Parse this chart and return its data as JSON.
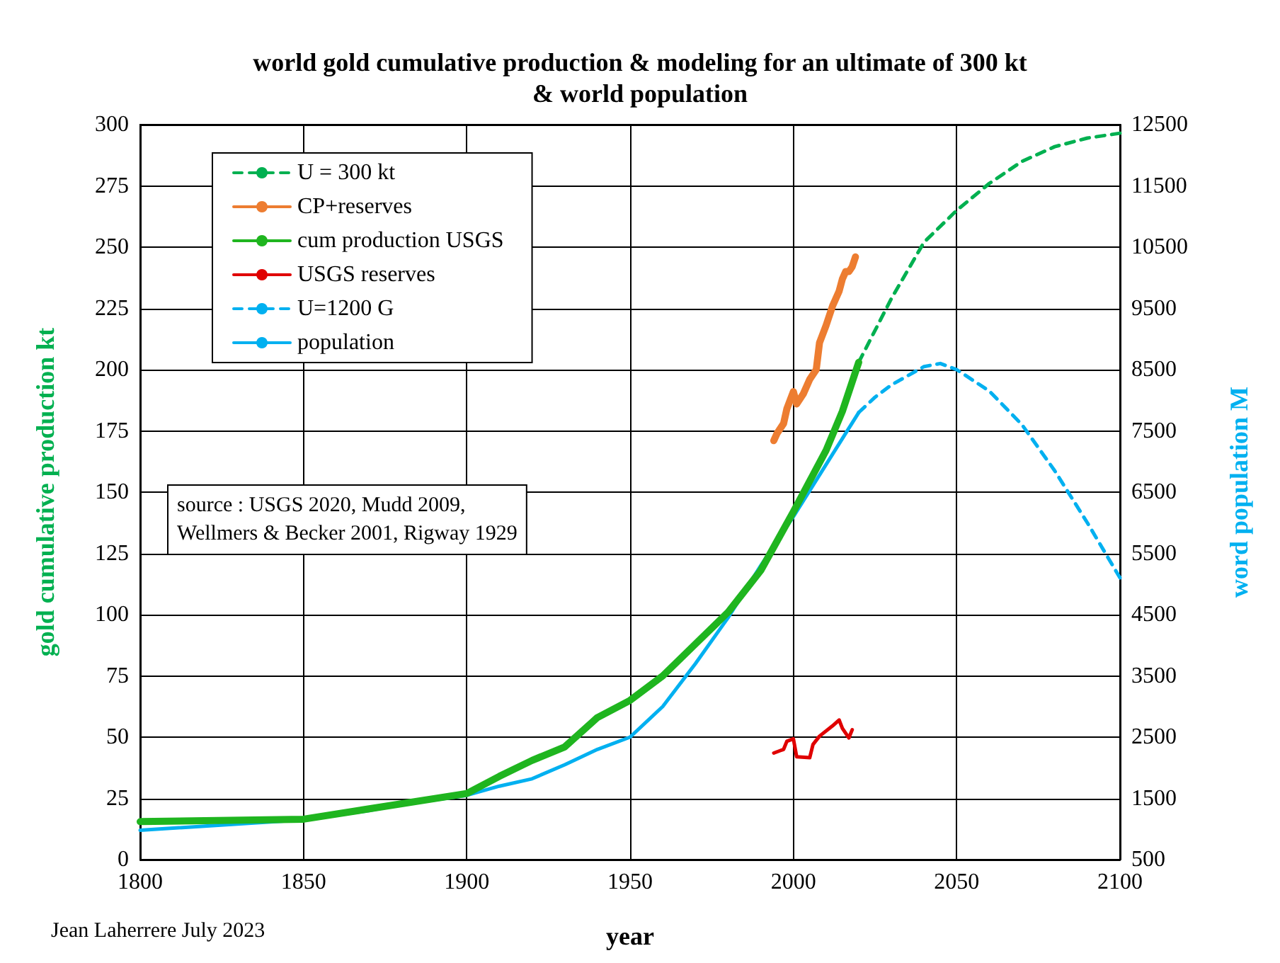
{
  "chart_data": {
    "type": "line",
    "title": "world gold cumulative production & modeling for an ultimate of 300 kt\n& world population",
    "xlabel": "year",
    "ylabel": "gold cumulative production kt",
    "y2label": "word population M",
    "xlim": [
      1800,
      2100
    ],
    "xticks": [
      1800,
      1850,
      1900,
      1950,
      2000,
      2050,
      2100
    ],
    "ylim": [
      0,
      300
    ],
    "yticks": [
      0,
      25,
      50,
      75,
      100,
      125,
      150,
      175,
      200,
      225,
      250,
      275,
      300
    ],
    "y2lim": [
      500,
      12500
    ],
    "y2ticks": [
      500,
      1500,
      2500,
      3500,
      4500,
      5500,
      6500,
      7500,
      8500,
      9500,
      10500,
      11500,
      12500
    ],
    "grid": true,
    "legend": "top left",
    "marker": "none",
    "annotations": [
      "source : USGS 2020, Mudd 2009,\nWellmers & Becker 2001, Rigway 1929",
      "Jean Laherrere July 2023"
    ],
    "series": [
      {
        "name": "U = 300 kt",
        "color": "#00b050",
        "line_style": "dashed",
        "x": [
          2020,
          2030,
          2040,
          2050,
          2060,
          2070,
          2080,
          2090,
          2100
        ],
        "values": [
          203,
          229,
          252,
          265,
          276,
          285,
          291,
          294.5,
          296.5
        ]
      },
      {
        "name": "CP+reserves",
        "color": "#ed7d31",
        "line_style": "solid",
        "x": [
          1994,
          1995,
          1997,
          1998,
          2000,
          2001,
          2003,
          2005,
          2007,
          2008,
          2010,
          2012,
          2014,
          2015,
          2016,
          2017,
          2018,
          2019
        ],
        "values": [
          171,
          174,
          178,
          184,
          191,
          186,
          190,
          196,
          200,
          211,
          218,
          226,
          232,
          237,
          240,
          240,
          242,
          246
        ]
      },
      {
        "name": "cum production USGS",
        "color": "#1fb51f",
        "line_style": "solid",
        "x": [
          1800,
          1850,
          1900,
          1910,
          1920,
          1930,
          1940,
          1950,
          1960,
          1970,
          1980,
          1990,
          2000,
          2010,
          2015,
          2020
        ],
        "values": [
          15.5,
          16.5,
          27,
          34,
          40.5,
          46,
          58,
          65,
          75,
          88,
          101,
          118,
          142,
          167,
          183,
          203
        ]
      },
      {
        "name": "USGS reserves",
        "color": "#e00000",
        "line_style": "solid",
        "x": [
          1994,
          1996,
          1997,
          1998,
          2000,
          2001,
          2005,
          2006,
          2008,
          2012,
          2014,
          2015,
          2017,
          2018
        ],
        "values": [
          43.5,
          44.5,
          45,
          48.3,
          49.3,
          42,
          41.6,
          47,
          50.4,
          54.6,
          57,
          53.6,
          49.7,
          53
        ]
      },
      {
        "name": "U=1200 G",
        "color": "#00b0f0",
        "line_style": "dashed",
        "axis": "y2",
        "x": [
          2020,
          2025,
          2030,
          2040,
          2045,
          2050,
          2060,
          2070,
          2080,
          2090,
          2100
        ],
        "values": [
          7800,
          8050,
          8250,
          8550,
          8600,
          8500,
          8150,
          7600,
          6850,
          6000,
          5100
        ]
      },
      {
        "name": "population",
        "color": "#00b0f0",
        "line_style": "solid",
        "axis": "y2",
        "x": [
          1800,
          1850,
          1870,
          1880,
          1900,
          1910,
          1920,
          1930,
          1940,
          1950,
          1960,
          1970,
          1980,
          1990,
          2000,
          2010,
          2020
        ],
        "values": [
          980,
          1150,
          1300,
          1400,
          1550,
          1700,
          1820,
          2050,
          2300,
          2500,
          3000,
          3700,
          4450,
          5300,
          6100,
          6950,
          7800
        ]
      }
    ]
  }
}
